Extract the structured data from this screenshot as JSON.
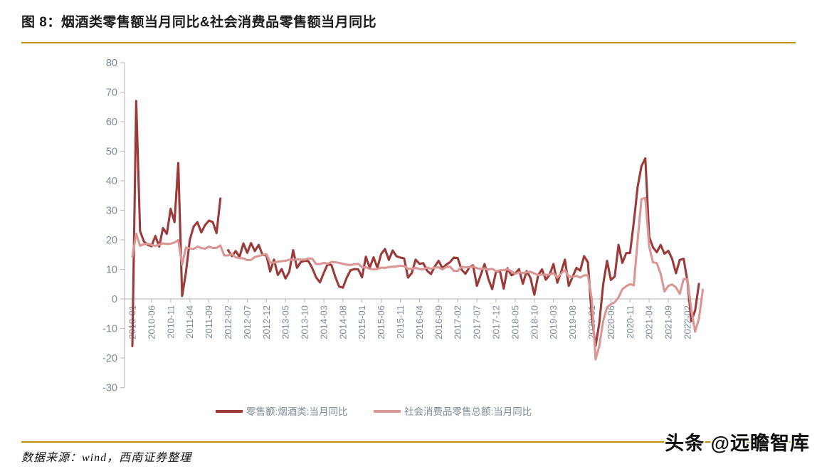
{
  "title": "图 8：烟酒类零售额当月同比&社会消费品零售额当月同比",
  "source_note": "数据来源：wind，西南证券整理",
  "watermark": "头条 @远瞻智库",
  "colors": {
    "accent_rule": "#BF9000",
    "axis_line": "#C0C0C0",
    "axis_label": "#7E8B98",
    "series_dark_red": "#9B3A38",
    "series_pink": "#D99694"
  },
  "chart_data": {
    "type": "line",
    "title": "烟酒类零售额当月同比&社会消费品零售额当月同比",
    "xlabel": "",
    "ylabel": "",
    "ylim": [
      -30,
      80
    ],
    "y_ticks": [
      80,
      70,
      60,
      50,
      40,
      30,
      20,
      10,
      0,
      -10,
      -20,
      -30
    ],
    "grid": false,
    "legend_position": "bottom",
    "x_start": "2010-01",
    "x_end": "2022-06",
    "x_tick_every_months": 5,
    "x_tick_labels": [
      "2010-01",
      "2010-06",
      "2010-11",
      "2011-04",
      "2011-09",
      "2012-02",
      "2012-07",
      "2012-12",
      "2013-05",
      "2013-10",
      "2014-03",
      "2014-08",
      "2015-01",
      "2015-06",
      "2015-11",
      "2016-04",
      "2016-09",
      "2017-02",
      "2017-07",
      "2017-12",
      "2018-05",
      "2018-10",
      "2019-03",
      "2019-08",
      "2020-01",
      "2020-06",
      "2020-11",
      "2021-04",
      "2021-09",
      "2022-02"
    ],
    "series": [
      {
        "name": "零售额:烟酒类:当月同比",
        "color": "#9B3A38",
        "values": [
          -16,
          67,
          23,
          19.5,
          18.3,
          17.8,
          21.3,
          17.7,
          24,
          22,
          30.5,
          26,
          46,
          1,
          9,
          20,
          24.5,
          26,
          22.5,
          25,
          26.5,
          26,
          22.3,
          34,
          null,
          16.5,
          14.5,
          16.2,
          14.2,
          18.8,
          15.6,
          18.9,
          16.2,
          18.3,
          14.9,
          14.7,
          9.3,
          13.3,
          8.1,
          10.1,
          6.9,
          9.2,
          16.5,
          10.5,
          12.5,
          12.9,
          12.8,
          10.4,
          7.3,
          5.6,
          8.8,
          11.7,
          11.5,
          7.5,
          4.2,
          3.8,
          7.2,
          9.7,
          10.1,
          10,
          7.3,
          14.3,
          10.5,
          14.1,
          10.5,
          15.2,
          16.9,
          13.2,
          16.4,
          14.4,
          14,
          13.7,
          7.2,
          8.8,
          13.3,
          11.9,
          12.1,
          9.5,
          8.4,
          11,
          12.9,
          10.4,
          11.6,
          12.5,
          14,
          13.8,
          9.9,
          8.5,
          10.6,
          11.4,
          4.4,
          8.1,
          11.8,
          6.8,
          3.3,
          9.2,
          9.5,
          3.5,
          10.4,
          8,
          8.6,
          10.1,
          5.1,
          9.4,
          7.1,
          1.4,
          8,
          10,
          6.5,
          8.2,
          11.8,
          5.5,
          9.1,
          13.3,
          4.4,
          7.5,
          10.5,
          9.6,
          14.5,
          12.4,
          -6,
          -15.9,
          -8,
          5,
          12.9,
          6.4,
          7.6,
          18.3,
          12.2,
          15.5,
          15.6,
          26,
          38,
          45,
          47.6,
          21,
          17.5,
          15.8,
          18.3,
          15.3,
          16.3,
          13.6,
          8.7,
          13.2,
          13.6,
          6,
          -7.5,
          -4,
          5.1,
          null
        ]
      },
      {
        "name": "社会消费品零售总额:当月同比",
        "color": "#D99694",
        "values": [
          14.3,
          22.1,
          18,
          18.5,
          18.7,
          18.3,
          17.9,
          18.4,
          18.8,
          18.6,
          18.7,
          19.1,
          19.9,
          11.6,
          17.4,
          17.1,
          16.9,
          17.7,
          17.2,
          17,
          17.7,
          17.2,
          17.3,
          18.1,
          14.7,
          14.7,
          15.2,
          14.1,
          13.8,
          13.7,
          13.1,
          13.2,
          14.2,
          14.5,
          14.9,
          15.2,
          12.3,
          12.3,
          12.6,
          12.8,
          12.9,
          13.3,
          13.2,
          13.4,
          13.3,
          13.3,
          13.7,
          13.6,
          11.8,
          11.8,
          12.2,
          11.9,
          12.5,
          12.4,
          12.2,
          11.9,
          11.6,
          11.5,
          11.7,
          11.9,
          10.7,
          10.7,
          10.2,
          10,
          10.1,
          10.6,
          10.5,
          10.8,
          10.9,
          11,
          11.2,
          11.1,
          10.2,
          10.2,
          10.5,
          10.1,
          10,
          10.6,
          10.2,
          10.6,
          10.7,
          10,
          10.8,
          10.9,
          9.5,
          9.5,
          10.9,
          10.7,
          10.7,
          11,
          10.4,
          10.1,
          10.3,
          10,
          10.2,
          9.4,
          9.7,
          9.7,
          10.1,
          9.4,
          8.5,
          9,
          8.8,
          9,
          9.2,
          8.6,
          8.1,
          8.2,
          8.2,
          8.2,
          8.7,
          7.2,
          8.6,
          9.8,
          7.6,
          7.5,
          7.8,
          7.2,
          8,
          8,
          0,
          -20.5,
          -15.8,
          -7.5,
          -2.8,
          -1.8,
          -1.1,
          0.5,
          3.3,
          4.3,
          5,
          4.6,
          20,
          33.8,
          34.2,
          17.7,
          12.4,
          12.1,
          8.5,
          2.5,
          4.4,
          4.9,
          3.9,
          1.7,
          6.7,
          6.7,
          -3.5,
          -11.1,
          -6.7,
          3.1
        ]
      }
    ]
  }
}
